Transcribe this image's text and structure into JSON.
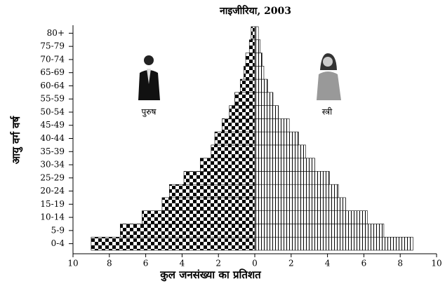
{
  "chart_data": {
    "type": "pyramid",
    "title": "नाइजीरिया, 2003",
    "xlabel": "कुल जनसंख्या का प्रतिशत",
    "ylabel": "आयु वर्ग वर्ष",
    "categories": [
      "0-4",
      "5-9",
      "10-14",
      "15-19",
      "20-24",
      "25-29",
      "30-34",
      "35-39",
      "40-44",
      "45-49",
      "50-54",
      "55-59",
      "60-64",
      "65-69",
      "70-74",
      "75-79",
      "80+"
    ],
    "series": [
      {
        "name": "पुरुष",
        "color": "#000000",
        "side": "left",
        "values": [
          9.0,
          7.4,
          6.2,
          5.1,
          4.7,
          3.9,
          3.0,
          2.4,
          2.2,
          1.8,
          1.4,
          1.1,
          0.8,
          0.6,
          0.5,
          0.3,
          0.2
        ]
      },
      {
        "name": "स्त्री",
        "color": "#000000",
        "side": "right",
        "values": [
          8.7,
          7.1,
          6.2,
          5.0,
          4.6,
          4.1,
          3.3,
          2.8,
          2.4,
          1.9,
          1.3,
          1.0,
          0.7,
          0.5,
          0.4,
          0.3,
          0.2
        ]
      }
    ],
    "xlim": [
      -10,
      10
    ],
    "xticks": [
      {
        "value": -10,
        "label": "10"
      },
      {
        "value": -8,
        "label": "8"
      },
      {
        "value": -6,
        "label": "6"
      },
      {
        "value": -4,
        "label": "4"
      },
      {
        "value": -2,
        "label": "2"
      },
      0,
      2,
      4,
      6,
      8,
      10
    ]
  }
}
